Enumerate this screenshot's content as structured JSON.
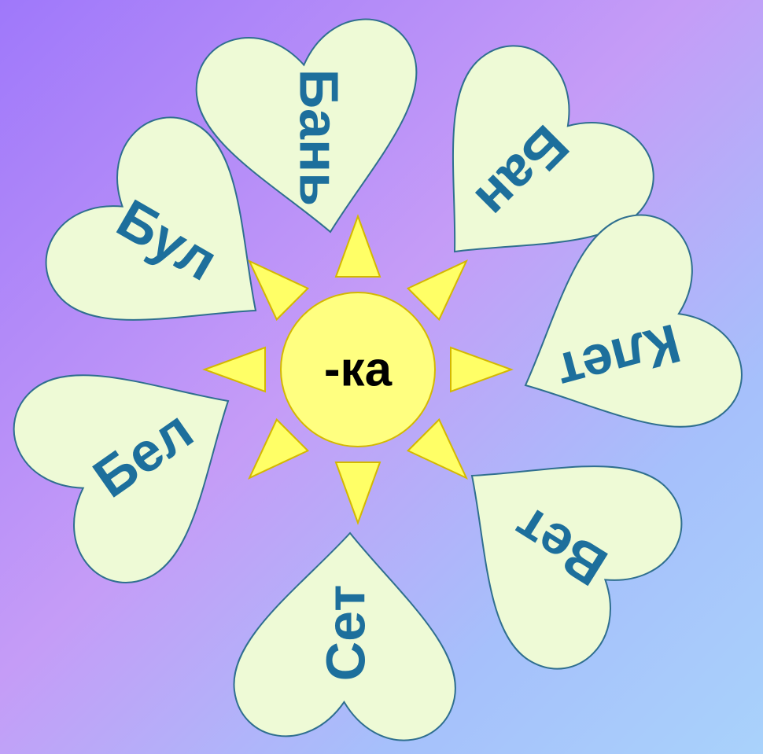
{
  "center": "-ка",
  "petals": [
    {
      "label": "Бань"
    },
    {
      "label": "Бан"
    },
    {
      "label": "Клет"
    },
    {
      "label": "Вет"
    },
    {
      "label": "Сет"
    },
    {
      "label": "Бел"
    },
    {
      "label": "Бул"
    }
  ]
}
